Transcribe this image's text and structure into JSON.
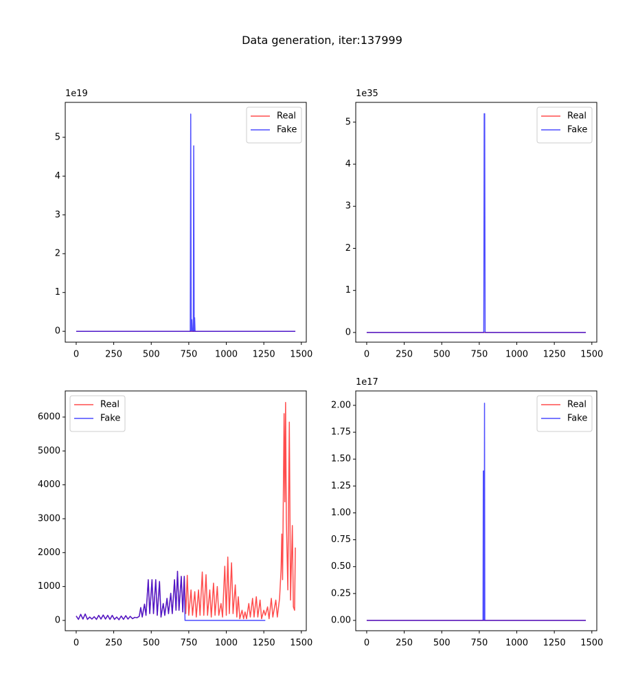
{
  "title": "Data generation, iter:137999",
  "chart_data": [
    {
      "type": "line",
      "offset_text": "1e19",
      "legend": "upper right",
      "alpha": 0.7,
      "xlim": [
        -73,
        1533
      ],
      "xticks": [
        0,
        250,
        500,
        750,
        1000,
        1250,
        1500
      ],
      "ylim": [
        -0.28,
        5.9
      ],
      "yticks": [
        0,
        1,
        2,
        3,
        4,
        5
      ],
      "series": [
        {
          "name": "Real",
          "color": "#ff0000",
          "x": [
            0,
            1460
          ],
          "values": [
            0,
            0
          ]
        },
        {
          "name": "Fake",
          "color": "#0000ff",
          "x": [
            0,
            760,
            763,
            766,
            770,
            774,
            780,
            783,
            786,
            789,
            792,
            1460
          ],
          "values": [
            0,
            0,
            5.6,
            0,
            0.3,
            0,
            0,
            4.78,
            0,
            0.35,
            0,
            0
          ]
        }
      ]
    },
    {
      "type": "line",
      "offset_text": "1e35",
      "legend": "upper right",
      "alpha": 0.7,
      "xlim": [
        -73,
        1533
      ],
      "xticks": [
        0,
        250,
        500,
        750,
        1000,
        1250,
        1500
      ],
      "ylim": [
        -0.23,
        5.47
      ],
      "yticks": [
        0,
        1,
        2,
        3,
        4,
        5
      ],
      "series": [
        {
          "name": "Real",
          "color": "#ff0000",
          "x": [
            0,
            1460
          ],
          "values": [
            0,
            0
          ]
        },
        {
          "name": "Fake",
          "color": "#0000ff",
          "x": [
            0,
            780,
            783,
            786,
            789,
            1460
          ],
          "values": [
            0,
            0,
            5.2,
            5.2,
            0,
            0
          ]
        }
      ]
    },
    {
      "type": "line",
      "legend": "upper left",
      "alpha": 0.7,
      "xlim": [
        -73,
        1533
      ],
      "xticks": [
        0,
        250,
        500,
        750,
        1000,
        1250,
        1500
      ],
      "ylim": [
        -304,
        6770
      ],
      "yticks": [
        0,
        1000,
        2000,
        3000,
        4000,
        5000,
        6000
      ],
      "series": [
        {
          "name": "Real",
          "color": "#ff0000",
          "x": [
            0,
            15,
            30,
            45,
            60,
            75,
            90,
            105,
            120,
            135,
            150,
            165,
            180,
            195,
            210,
            225,
            240,
            255,
            270,
            285,
            300,
            315,
            330,
            345,
            360,
            375,
            390,
            405,
            420,
            430,
            440,
            455,
            465,
            480,
            490,
            505,
            515,
            530,
            540,
            555,
            565,
            580,
            590,
            605,
            615,
            630,
            640,
            655,
            665,
            675,
            685,
            700,
            710,
            720,
            730,
            740,
            750,
            765,
            775,
            790,
            800,
            815,
            825,
            840,
            850,
            865,
            875,
            890,
            900,
            915,
            925,
            940,
            950,
            965,
            975,
            990,
            1000,
            1010,
            1020,
            1035,
            1045,
            1060,
            1070,
            1080,
            1090,
            1105,
            1115,
            1125,
            1135,
            1150,
            1160,
            1175,
            1185,
            1200,
            1210,
            1225,
            1235,
            1250,
            1260,
            1275,
            1285,
            1300,
            1310,
            1330,
            1340,
            1355,
            1365,
            1370,
            1375,
            1385,
            1390,
            1395,
            1400,
            1410,
            1420,
            1428,
            1440,
            1447,
            1455,
            1460
          ],
          "values": [
            130,
            30,
            180,
            40,
            190,
            30,
            100,
            40,
            110,
            30,
            150,
            40,
            160,
            40,
            150,
            30,
            150,
            30,
            100,
            20,
            130,
            30,
            140,
            40,
            120,
            50,
            90,
            80,
            120,
            380,
            100,
            480,
            150,
            1200,
            200,
            1200,
            200,
            1200,
            150,
            1150,
            100,
            500,
            150,
            650,
            200,
            800,
            200,
            1200,
            300,
            1450,
            300,
            1300,
            250,
            1300,
            200,
            1330,
            150,
            900,
            150,
            850,
            100,
            900,
            150,
            1430,
            150,
            1350,
            150,
            900,
            100,
            1100,
            150,
            1000,
            150,
            500,
            100,
            1600,
            150,
            1870,
            200,
            1700,
            200,
            1050,
            100,
            700,
            50,
            300,
            50,
            250,
            50,
            500,
            100,
            650,
            100,
            700,
            100,
            600,
            50,
            300,
            150,
            400,
            50,
            650,
            100,
            600,
            100,
            650,
            1500,
            2550,
            1200,
            6100,
            3500,
            6430,
            3000,
            900,
            5850,
            600,
            2800,
            400,
            300,
            2150
          ]
        },
        {
          "name": "Fake",
          "color": "#0000ff",
          "x": [
            0,
            15,
            30,
            45,
            60,
            75,
            90,
            105,
            120,
            135,
            150,
            165,
            180,
            195,
            210,
            225,
            240,
            255,
            270,
            285,
            300,
            315,
            330,
            345,
            360,
            375,
            390,
            405,
            420,
            430,
            440,
            455,
            465,
            480,
            490,
            505,
            515,
            530,
            540,
            555,
            565,
            580,
            590,
            605,
            615,
            630,
            640,
            655,
            665,
            675,
            685,
            700,
            710,
            720,
            725,
            1260
          ],
          "values": [
            130,
            30,
            180,
            40,
            190,
            30,
            100,
            40,
            110,
            30,
            150,
            40,
            160,
            40,
            150,
            30,
            150,
            30,
            100,
            20,
            130,
            30,
            140,
            40,
            120,
            50,
            90,
            80,
            120,
            380,
            100,
            480,
            150,
            1200,
            200,
            1200,
            200,
            1200,
            150,
            1150,
            100,
            500,
            150,
            650,
            200,
            800,
            200,
            1200,
            300,
            1450,
            300,
            1300,
            250,
            1300,
            0,
            0
          ]
        }
      ]
    },
    {
      "type": "line",
      "offset_text": "1e17",
      "legend": "upper right",
      "alpha": 0.7,
      "xlim": [
        -73,
        1533
      ],
      "xticks": [
        0,
        250,
        500,
        750,
        1000,
        1250,
        1500
      ],
      "ylim": [
        -0.096,
        2.134
      ],
      "yticks": [
        {
          "value": 0,
          "label": "0.00"
        },
        {
          "value": 0.25,
          "label": "0.25"
        },
        {
          "value": 0.5,
          "label": "0.50"
        },
        {
          "value": 0.75,
          "label": "0.75"
        },
        {
          "value": 1,
          "label": "1.00"
        },
        {
          "value": 1.25,
          "label": "1.25"
        },
        {
          "value": 1.5,
          "label": "1.50"
        },
        {
          "value": 1.75,
          "label": "1.75"
        },
        {
          "value": 2,
          "label": "2.00"
        }
      ],
      "series": [
        {
          "name": "Real",
          "color": "#ff0000",
          "x": [
            0,
            1460
          ],
          "values": [
            0,
            0
          ]
        },
        {
          "name": "Fake",
          "color": "#0000ff",
          "x": [
            0,
            775,
            777,
            779,
            781,
            783,
            785,
            787,
            1460
          ],
          "values": [
            0,
            0,
            1.39,
            1.39,
            0,
            0,
            2.02,
            0,
            0
          ]
        }
      ]
    }
  ]
}
